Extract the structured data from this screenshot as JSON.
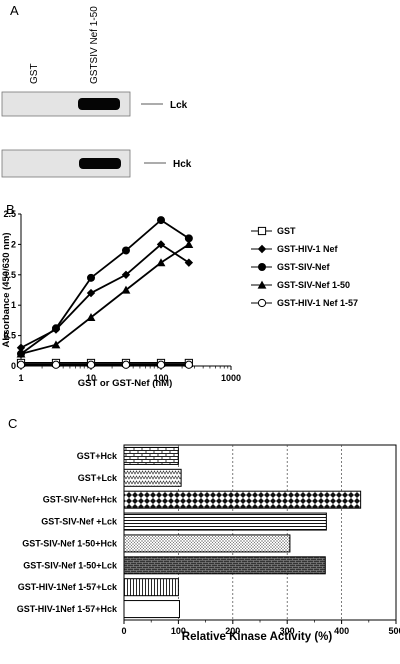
{
  "panels": {
    "a": {
      "letter": "A",
      "lanes": [
        "GST",
        "GSTSIV Nef 1-50"
      ],
      "blots": [
        {
          "label": "Lck",
          "band_intensity": [
            0,
            1
          ]
        },
        {
          "label": "Hck",
          "band_intensity": [
            0,
            1
          ]
        }
      ]
    },
    "b": {
      "letter": "B"
    },
    "c": {
      "letter": "C"
    }
  },
  "chart_data": [
    {
      "type": "line",
      "panel": "B",
      "xlabel": "GST  or  GST-Nef  (nM)",
      "ylabel": "Absorbance (450/630 nm)",
      "x_scale": "log",
      "xlim": [
        1,
        1000
      ],
      "ylim": [
        0,
        2.5
      ],
      "xticks": [
        1,
        10,
        100,
        1000
      ],
      "xtick_labels": [
        "1",
        "10",
        "100",
        "1000"
      ],
      "yticks": [
        0,
        0.5,
        1,
        1.5,
        2,
        2.5
      ],
      "ytick_labels": [
        "0",
        "0.5",
        "1",
        "1.5",
        "2",
        "2.5"
      ],
      "legend_position": "right",
      "x": [
        1,
        3.16,
        10,
        31.6,
        100,
        250
      ],
      "series": [
        {
          "name": "GST",
          "marker": "open-square",
          "values": [
            0.05,
            0.05,
            0.05,
            0.05,
            0.05,
            0.05
          ]
        },
        {
          "name": "GST-HIV-1  Nef",
          "marker": "filled-diamond",
          "values": [
            0.3,
            0.6,
            1.2,
            1.5,
            2.0,
            1.7
          ]
        },
        {
          "name": "GST-SIV-Nef",
          "marker": "filled-circle",
          "values": [
            0.2,
            0.62,
            1.45,
            1.9,
            2.4,
            2.1
          ]
        },
        {
          "name": "GST-SIV-Nef  1-50",
          "marker": "filled-triangle",
          "values": [
            0.2,
            0.35,
            0.8,
            1.25,
            1.7,
            2.0
          ]
        },
        {
          "name": "GST-HIV-1  Nef  1-57",
          "marker": "open-circle",
          "values": [
            0.02,
            0.02,
            0.02,
            0.02,
            0.02,
            0.02
          ]
        }
      ]
    },
    {
      "type": "bar",
      "panel": "C",
      "orientation": "horizontal",
      "xlabel": "Relative Kinase Activity (%)",
      "xlim": [
        0,
        500
      ],
      "xticks": [
        0,
        100,
        200,
        300,
        400,
        500
      ],
      "xtick_labels": [
        "0",
        "100",
        "200",
        "300",
        "400",
        "500"
      ],
      "grid": "vertical dashed",
      "categories": [
        "GST+Hck",
        "GST+Lck",
        "GST-SIV-Nef+Hck",
        "GST-SIV-Nef +Lck",
        "GST-SIV-Nef 1-50+Hck",
        "GST-SIV-Nef 1-50+Lck",
        "GST-HIV-1Nef 1-57+Lck",
        "GST-HIV-1Nef 1-57+Hck"
      ],
      "values": [
        100,
        105,
        435,
        372,
        305,
        370,
        100,
        102
      ],
      "patterns": [
        "bricks",
        "zigzag",
        "diamonds",
        "hlines",
        "dots",
        "dense-bricks",
        "vlines",
        "blank"
      ]
    }
  ]
}
